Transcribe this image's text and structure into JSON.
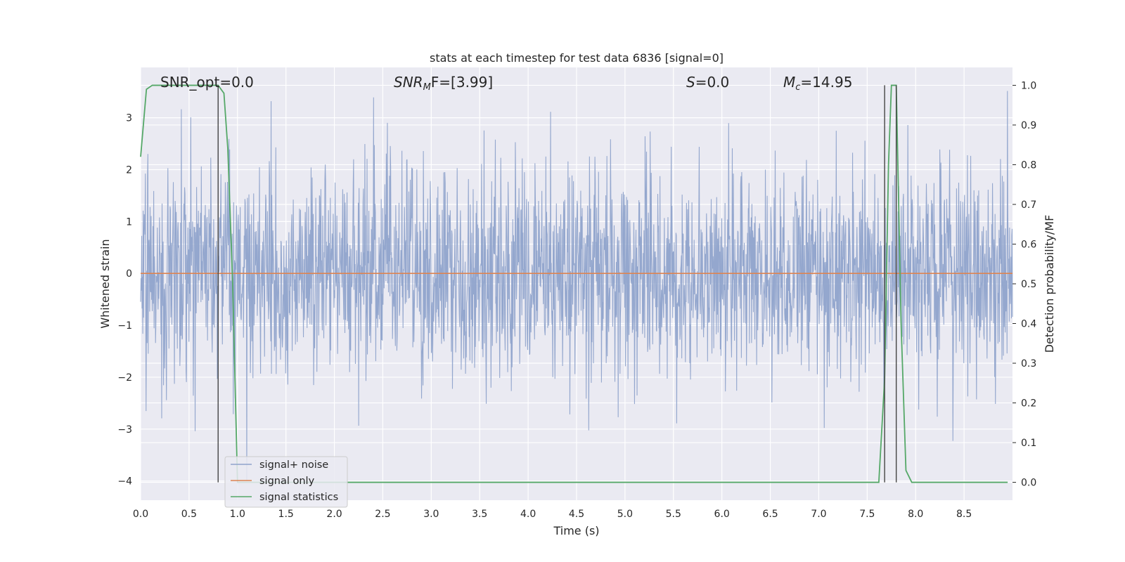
{
  "chart_data": {
    "type": "line",
    "title": "stats at each timestep for test data 6836 [signal=0]",
    "xlabel": "Time (s)",
    "ylabel_left": "Whitened strain",
    "ylabel_right": "Detection probability/MF",
    "xlim": [
      0.0,
      9.0
    ],
    "ylim_left": [
      -4.37,
      3.97
    ],
    "ylim_right": [
      -0.045,
      1.045
    ],
    "x_ticks": [
      "0.0",
      "0.5",
      "1.0",
      "1.5",
      "2.0",
      "2.5",
      "3.0",
      "3.5",
      "4.0",
      "4.5",
      "5.0",
      "5.5",
      "6.0",
      "6.5",
      "7.0",
      "7.5",
      "8.0",
      "8.5"
    ],
    "y_left_ticks": [
      "−4",
      "−3",
      "−2",
      "−1",
      "0",
      "1",
      "2",
      "3"
    ],
    "y_right_ticks": [
      "0.0",
      "0.1",
      "0.2",
      "0.3",
      "0.4",
      "0.5",
      "0.6",
      "0.7",
      "0.8",
      "0.9",
      "1.0"
    ],
    "grid": true,
    "legend_position": "lower-left",
    "annotations": {
      "snr_opt": "SNR_opt=0.0",
      "snr_mf_base": "SNR",
      "snr_mf_sub": "M",
      "snr_mf_rest": "F=[3.99]",
      "s_base": "S",
      "s_rest": "=0.0",
      "mc_base": "M",
      "mc_sub": "c",
      "mc_rest": "=14.95"
    },
    "series": [
      {
        "name": "signal+ noise",
        "color": "#8fa3cb",
        "note": "whitened noise, approx. within -4 to 3.6",
        "envelope": {
          "typical_low": -1.7,
          "typical_high": 1.7,
          "max": 3.6,
          "min": -4.0
        }
      },
      {
        "name": "signal only",
        "color": "#dd8452",
        "x": [
          0.0,
          9.0
        ],
        "y": [
          0.0,
          0.0
        ]
      },
      {
        "name": "signal statistics",
        "color": "#55a868",
        "axis": "right",
        "x": [
          0.0,
          0.06,
          0.12,
          0.2,
          0.3,
          0.5,
          0.7,
          0.8,
          0.86,
          0.9,
          0.95,
          1.0,
          1.5,
          2.0,
          3.0,
          4.0,
          5.0,
          6.0,
          7.0,
          7.55,
          7.62,
          7.68,
          7.72,
          7.75,
          7.8,
          7.85,
          7.9,
          7.96,
          8.0,
          8.2,
          8.5,
          8.95
        ],
        "y": [
          0.82,
          0.99,
          1.0,
          1.0,
          1.0,
          1.0,
          1.0,
          1.0,
          0.98,
          0.84,
          0.5,
          0.0,
          0.0,
          0.0,
          0.0,
          0.0,
          0.0,
          0.0,
          0.0,
          0.0,
          0.0,
          0.26,
          0.8,
          1.0,
          1.0,
          0.4,
          0.03,
          0.0,
          0.0,
          0.0,
          0.0,
          0.0
        ]
      }
    ],
    "vertical_markers": {
      "color": "#444444",
      "x": [
        0.8,
        7.68,
        7.8
      ]
    }
  }
}
